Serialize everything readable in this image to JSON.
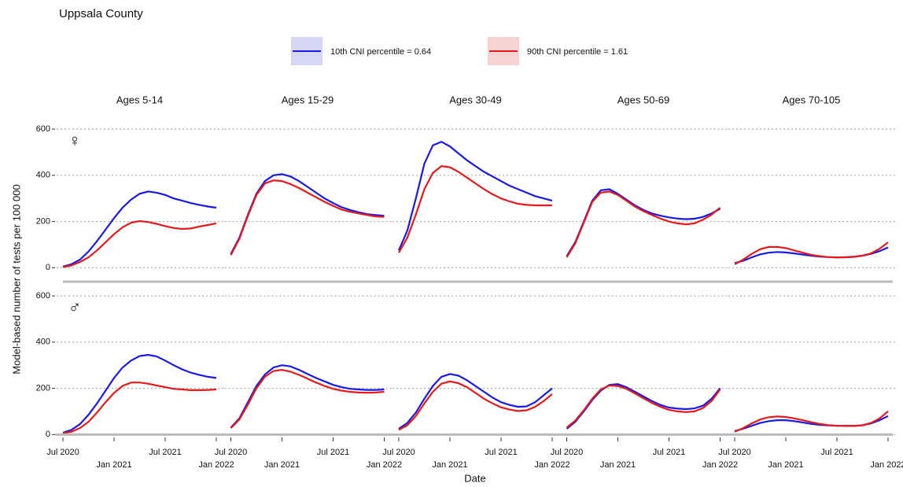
{
  "chart_data": {
    "type": "line",
    "title": "Uppsala County",
    "xlabel": "Date",
    "ylabel": "Model-based number of tests per 100 000",
    "series": [
      {
        "name": "10th CNI percentile = 0.64",
        "color": "#1a1ae6"
      },
      {
        "name": "90th CNI percentile = 1.61",
        "color": "#e61a1a"
      }
    ],
    "x": [
      "Jul 2020",
      "Aug 2020",
      "Sep 2020",
      "Oct 2020",
      "Nov 2020",
      "Dec 2020",
      "Jan 2021",
      "Feb 2021",
      "Mar 2021",
      "Apr 2021",
      "May 2021",
      "Jun 2021",
      "Jul 2021",
      "Aug 2021",
      "Sep 2021",
      "Oct 2021",
      "Nov 2021",
      "Dec 2021",
      "Jan 2022"
    ],
    "xticks": [
      "Jul 2020",
      "Jan 2021",
      "Jul 2021",
      "Jan 2022"
    ],
    "ylim": [
      -50,
      665
    ],
    "yticks": [
      0,
      200,
      400,
      600
    ],
    "grid": true,
    "columns": [
      "Ages 5-14",
      "Ages 15-29",
      "Ages 30-49",
      "Ages 50-69",
      "Ages 70-105"
    ],
    "facets": [
      {
        "label": "♀",
        "panels": [
          {
            "series": [
              {
                "values": [
                  5,
                  15,
                  35,
                  70,
                  115,
                  165,
                  215,
                  260,
                  295,
                  320,
                  330,
                  325,
                  315,
                  300,
                  290,
                  280,
                  272,
                  265,
                  260
                ]
              },
              {
                "values": [
                  3,
                  10,
                  25,
                  45,
                  75,
                  110,
                  145,
                  175,
                  195,
                  202,
                  198,
                  190,
                  180,
                  172,
                  168,
                  170,
                  178,
                  185,
                  192
                ]
              }
            ]
          },
          {
            "series": [
              {
                "values": [
                  60,
                  130,
                  230,
                  320,
                  375,
                  400,
                  405,
                  395,
                  375,
                  350,
                  325,
                  300,
                  280,
                  262,
                  250,
                  240,
                  232,
                  228,
                  225
                ]
              },
              {
                "values": [
                  55,
                  125,
                  225,
                  315,
                  365,
                  378,
                  375,
                  362,
                  345,
                  325,
                  305,
                  285,
                  268,
                  252,
                  242,
                  235,
                  228,
                  222,
                  220
                ]
              }
            ]
          },
          {
            "series": [
              {
                "values": [
                  75,
                  160,
                  300,
                  450,
                  530,
                  545,
                  525,
                  495,
                  465,
                  440,
                  415,
                  395,
                  375,
                  355,
                  340,
                  325,
                  310,
                  300,
                  290
                ]
              },
              {
                "values": [
                  65,
                  130,
                  230,
                  340,
                  410,
                  440,
                  435,
                  415,
                  390,
                  365,
                  340,
                  318,
                  300,
                  287,
                  277,
                  272,
                  270,
                  270,
                  270
                ]
              }
            ]
          },
          {
            "series": [
              {
                "values": [
                  50,
                  110,
                  200,
                  290,
                  335,
                  340,
                  320,
                  295,
                  270,
                  250,
                  235,
                  225,
                  218,
                  213,
                  210,
                  212,
                  220,
                  235,
                  255
                ]
              },
              {
                "values": [
                  45,
                  105,
                  195,
                  285,
                  325,
                  330,
                  315,
                  290,
                  265,
                  245,
                  228,
                  213,
                  200,
                  192,
                  188,
                  192,
                  208,
                  230,
                  260
                ]
              }
            ]
          },
          {
            "series": [
              {
                "values": [
                  20,
                  30,
                  45,
                  58,
                  65,
                  68,
                  66,
                  62,
                  57,
                  52,
                  48,
                  46,
                  45,
                  46,
                  48,
                  52,
                  60,
                  72,
                  88
                ]
              },
              {
                "values": [
                  15,
                  35,
                  60,
                  80,
                  90,
                  90,
                  85,
                  75,
                  65,
                  56,
                  50,
                  46,
                  45,
                  45,
                  47,
                  52,
                  62,
                  82,
                  110
                ]
              }
            ]
          }
        ]
      },
      {
        "label": "♂",
        "panels": [
          {
            "series": [
              {
                "values": [
                  8,
                  20,
                  45,
                  85,
                  135,
                  190,
                  245,
                  290,
                  320,
                  340,
                  345,
                  338,
                  320,
                  300,
                  282,
                  268,
                  258,
                  250,
                  245
                ]
              },
              {
                "values": [
                  5,
                  12,
                  28,
                  55,
                  95,
                  140,
                  180,
                  210,
                  225,
                  225,
                  220,
                  212,
                  205,
                  198,
                  195,
                  192,
                  192,
                  193,
                  195
                ]
              }
            ]
          },
          {
            "series": [
              {
                "values": [
                  30,
                  70,
                  140,
                  210,
                  260,
                  290,
                  300,
                  295,
                  280,
                  262,
                  245,
                  230,
                  215,
                  205,
                  198,
                  195,
                  193,
                  193,
                  195
                ]
              },
              {
                "values": [
                  28,
                  65,
                  130,
                  200,
                  250,
                  275,
                  280,
                  272,
                  258,
                  242,
                  225,
                  210,
                  198,
                  190,
                  185,
                  182,
                  181,
                  182,
                  185
                ]
              }
            ]
          },
          {
            "series": [
              {
                "values": [
                  25,
                  50,
                  95,
                  155,
                  210,
                  250,
                  262,
                  255,
                  235,
                  210,
                  185,
                  160,
                  140,
                  128,
                  120,
                  122,
                  140,
                  170,
                  200
                ]
              },
              {
                "values": [
                  20,
                  40,
                  80,
                  135,
                  185,
                  220,
                  230,
                  222,
                  205,
                  180,
                  155,
                  135,
                  118,
                  108,
                  102,
                  105,
                  120,
                  145,
                  175
                ]
              }
            ]
          },
          {
            "series": [
              {
                "values": [
                  25,
                  55,
                  100,
                  150,
                  190,
                  215,
                  218,
                  205,
                  185,
                  165,
                  145,
                  128,
                  117,
                  112,
                  110,
                  113,
                  125,
                  155,
                  200
                ]
              },
              {
                "values": [
                  30,
                  60,
                  105,
                  155,
                  195,
                  212,
                  210,
                  198,
                  178,
                  157,
                  137,
                  120,
                  107,
                  100,
                  97,
                  100,
                  115,
                  145,
                  195
                ]
              }
            ]
          },
          {
            "series": [
              {
                "values": [
                  15,
                  25,
                  38,
                  50,
                  58,
                  62,
                  62,
                  58,
                  52,
                  46,
                  42,
                  40,
                  38,
                  38,
                  38,
                  40,
                  48,
                  62,
                  80
                ]
              },
              {
                "values": [
                  12,
                  28,
                  48,
                  65,
                  75,
                  78,
                  76,
                  70,
                  62,
                  53,
                  46,
                  41,
                  38,
                  37,
                  37,
                  40,
                  50,
                  70,
                  100
                ]
              }
            ]
          }
        ]
      }
    ]
  }
}
